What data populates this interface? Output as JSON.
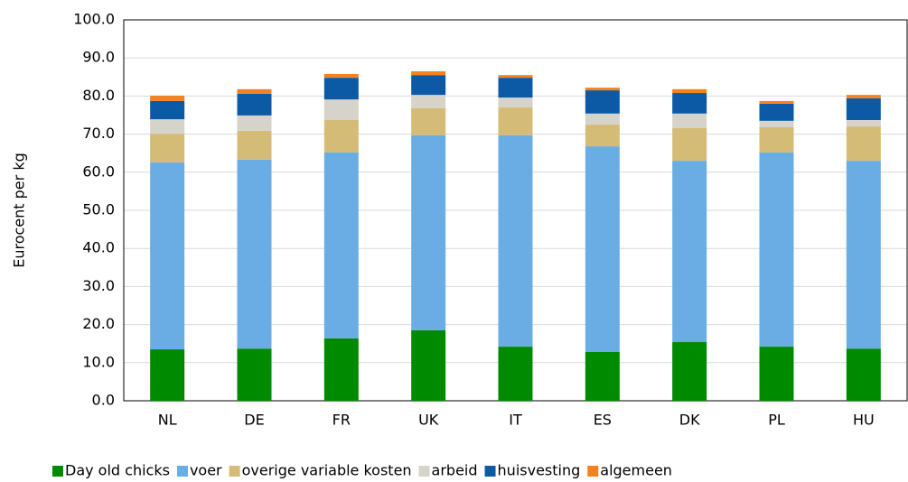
{
  "chart_data": {
    "type": "stacked_bar",
    "y_label": "Eurocent per kg",
    "categories": [
      "NL",
      "DE",
      "FR",
      "UK",
      "IT",
      "ES",
      "DK",
      "PL",
      "HU"
    ],
    "series": [
      {
        "name": "Day old chicks",
        "color": "#008a00",
        "values": [
          13.5,
          13.7,
          16.4,
          18.5,
          14.2,
          12.8,
          15.4,
          14.2,
          13.7
        ]
      },
      {
        "name": "voer",
        "color": "#6aade4",
        "values": [
          49.1,
          49.6,
          48.8,
          51.2,
          55.5,
          54.0,
          47.6,
          51.0,
          49.3
        ]
      },
      {
        "name": "overige variable kosten",
        "color": "#d4bc76",
        "values": [
          7.5,
          7.6,
          8.5,
          7.1,
          7.3,
          5.7,
          8.6,
          6.6,
          9.0
        ]
      },
      {
        "name": "arbeid",
        "color": "#d6d3cb",
        "values": [
          3.8,
          4.0,
          5.4,
          3.5,
          2.6,
          2.9,
          3.8,
          1.7,
          1.7
        ]
      },
      {
        "name": "huisvesting",
        "color": "#0c5aa6",
        "values": [
          4.8,
          5.7,
          5.7,
          5.2,
          5.2,
          6.1,
          5.4,
          4.5,
          5.7
        ]
      },
      {
        "name": "algemeen",
        "color": "#f58220",
        "values": [
          1.4,
          1.2,
          1.0,
          1.0,
          0.7,
          0.7,
          1.0,
          0.7,
          0.9
        ]
      }
    ],
    "ylim": [
      0,
      100
    ],
    "yticks": [
      {
        "value": 0,
        "label": "0.0"
      },
      {
        "value": 10,
        "label": "10.0"
      },
      {
        "value": 20,
        "label": "20.0"
      },
      {
        "value": 30,
        "label": "30.0"
      },
      {
        "value": 40,
        "label": "40.0"
      },
      {
        "value": 50,
        "label": "50.0"
      },
      {
        "value": 60,
        "label": "60.0"
      },
      {
        "value": 70,
        "label": "70.0"
      },
      {
        "value": 80,
        "label": "80.0"
      },
      {
        "value": 90,
        "label": "90.0"
      },
      {
        "value": 100,
        "label": "100.0"
      }
    ],
    "grid": true,
    "legend": "bottom"
  }
}
